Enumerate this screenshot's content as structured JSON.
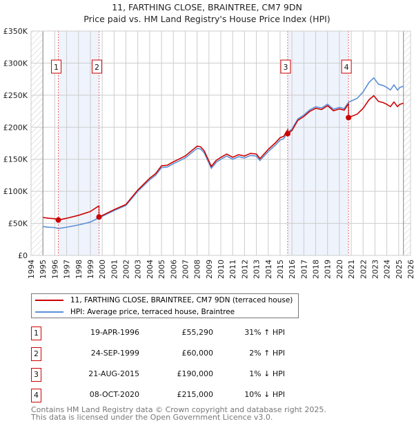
{
  "chart_data": {
    "type": "line",
    "title": "11, FARTHING CLOSE, BRAINTREE, CM7 9DN",
    "subtitle": "Price paid vs. HM Land Registry's House Price Index (HPI)",
    "xlim": [
      1994,
      2026
    ],
    "ylim": [
      0,
      350000
    ],
    "yticks": [
      {
        "value": 0,
        "label": "£0"
      },
      {
        "value": 50000,
        "label": "£50K"
      },
      {
        "value": 100000,
        "label": "£100K"
      },
      {
        "value": 150000,
        "label": "£150K"
      },
      {
        "value": 200000,
        "label": "£200K"
      },
      {
        "value": 250000,
        "label": "£250K"
      },
      {
        "value": 300000,
        "label": "£300K"
      },
      {
        "value": 350000,
        "label": "£350K"
      }
    ],
    "xticks": [
      "1994",
      "1995",
      "1996",
      "1997",
      "1998",
      "1999",
      "2000",
      "2001",
      "2002",
      "2003",
      "2004",
      "2005",
      "2006",
      "2007",
      "2008",
      "2009",
      "2010",
      "2011",
      "2012",
      "2013",
      "2014",
      "2015",
      "2016",
      "2017",
      "2018",
      "2019",
      "2020",
      "2021",
      "2022",
      "2023",
      "2024",
      "2025",
      "2026"
    ],
    "data_range": [
      1995,
      2025.4
    ],
    "colors": {
      "property": "#cc0000",
      "hpi": "#5b8fd6",
      "shade": "#eef3fc",
      "grid": "#cccccc"
    },
    "hpi_series": {
      "name": "HPI: Average price, terraced house, Braintree",
      "x": [
        1995.0,
        1995.5,
        1996.0,
        1996.3,
        1997.0,
        1998.0,
        1999.0,
        1999.73,
        2000.0,
        2001.0,
        2002.0,
        2003.0,
        2004.0,
        2004.5,
        2005.0,
        2005.5,
        2006.0,
        2007.0,
        2008.0,
        2008.3,
        2008.6,
        2009.2,
        2009.6,
        2010.0,
        2010.5,
        2011.0,
        2011.5,
        2012.0,
        2012.5,
        2013.0,
        2013.3,
        2014.0,
        2014.6,
        2015.0,
        2015.3,
        2015.64,
        2016.0,
        2016.5,
        2017.0,
        2017.5,
        2018.0,
        2018.5,
        2019.0,
        2019.5,
        2020.0,
        2020.4,
        2020.77,
        2021.0,
        2021.5,
        2022.0,
        2022.5,
        2022.9,
        2023.3,
        2023.7,
        2024.0,
        2024.3,
        2024.6,
        2024.9,
        2025.1,
        2025.4
      ],
      "y": [
        45000,
        44000,
        43500,
        42000,
        44000,
        47500,
        52000,
        58800,
        61000,
        70000,
        78000,
        100000,
        118000,
        125000,
        137000,
        138000,
        143000,
        152000,
        167000,
        166000,
        160000,
        136000,
        145000,
        150000,
        155000,
        150000,
        154000,
        152000,
        156000,
        155000,
        148000,
        162000,
        172000,
        180000,
        182000,
        192000,
        197000,
        213000,
        219000,
        227000,
        232000,
        230000,
        236000,
        228000,
        231000,
        229000,
        239000,
        241000,
        245000,
        255000,
        270000,
        277000,
        267000,
        265000,
        262000,
        258000,
        266000,
        258000,
        262000,
        264000
      ]
    },
    "property_series": {
      "name": "11, FARTHING CLOSE, BRAINTREE, CM7 9DN (terraced house)"
    },
    "sales": [
      {
        "id": "1",
        "x": 1996.3,
        "date": "19-APR-1996",
        "price": 55290,
        "price_label": "£55,290",
        "hpi_diff": "31% ↑ HPI"
      },
      {
        "id": "2",
        "x": 1999.73,
        "date": "24-SEP-1999",
        "price": 60000,
        "price_label": "£60,000",
        "hpi_diff": "2% ↑ HPI"
      },
      {
        "id": "3",
        "x": 2015.64,
        "date": "21-AUG-2015",
        "price": 190000,
        "price_label": "£190,000",
        "hpi_diff": "1% ↓ HPI"
      },
      {
        "id": "4",
        "x": 2020.77,
        "date": "08-OCT-2020",
        "price": 215000,
        "price_label": "£215,000",
        "hpi_diff": "10% ↓ HPI"
      }
    ],
    "legend": {
      "property": "11, FARTHING CLOSE, BRAINTREE, CM7 9DN (terraced house)",
      "hpi": "HPI: Average price, terraced house, Braintree",
      "placement": "below"
    }
  },
  "footer": {
    "line1": "Contains HM Land Registry data © Crown copyright and database right 2025.",
    "line2": "This data is licensed under the Open Government Licence v3.0."
  }
}
